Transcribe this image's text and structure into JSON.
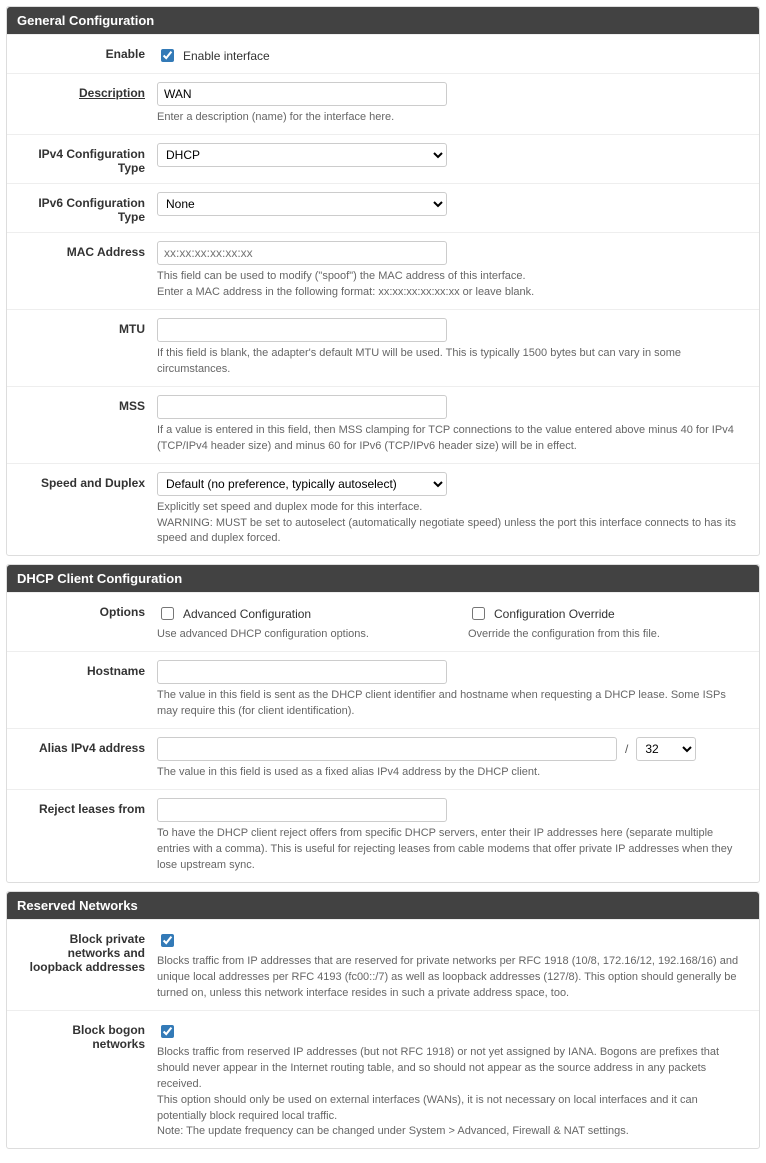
{
  "sections": {
    "general": {
      "title": "General Configuration",
      "enable": {
        "label": "Enable",
        "checkbox_label": "Enable interface",
        "checked": true
      },
      "description": {
        "label": "Description",
        "value": "WAN",
        "help": "Enter a description (name) for the interface here."
      },
      "ipv4_type": {
        "label": "IPv4 Configuration Type",
        "value": "DHCP"
      },
      "ipv6_type": {
        "label": "IPv6 Configuration Type",
        "value": "None"
      },
      "mac": {
        "label": "MAC Address",
        "placeholder": "xx:xx:xx:xx:xx:xx",
        "help": "This field can be used to modify (\"spoof\") the MAC address of this interface.\nEnter a MAC address in the following format: xx:xx:xx:xx:xx:xx or leave blank."
      },
      "mtu": {
        "label": "MTU",
        "help": "If this field is blank, the adapter's default MTU will be used. This is typically 1500 bytes but can vary in some circumstances."
      },
      "mss": {
        "label": "MSS",
        "help": "If a value is entered in this field, then MSS clamping for TCP connections to the value entered above minus 40 for IPv4 (TCP/IPv4 header size) and minus 60 for IPv6 (TCP/IPv6 header size) will be in effect."
      },
      "speed": {
        "label": "Speed and Duplex",
        "value": "Default (no preference, typically autoselect)",
        "help": "Explicitly set speed and duplex mode for this interface.\nWARNING: MUST be set to autoselect (automatically negotiate speed) unless the port this interface connects to has its speed and duplex forced."
      }
    },
    "dhcp": {
      "title": "DHCP Client Configuration",
      "options": {
        "label": "Options",
        "advanced_label": "Advanced Configuration",
        "advanced_help": "Use advanced DHCP configuration options.",
        "override_label": "Configuration Override",
        "override_help": "Override the configuration from this file."
      },
      "hostname": {
        "label": "Hostname",
        "help": "The value in this field is sent as the DHCP client identifier and hostname when requesting a DHCP lease. Some ISPs may require this (for client identification)."
      },
      "alias": {
        "label": "Alias IPv4 address",
        "slash": "/",
        "cidr": "32",
        "help": "The value in this field is used as a fixed alias IPv4 address by the DHCP client."
      },
      "reject": {
        "label": "Reject leases from",
        "help": "To have the DHCP client reject offers from specific DHCP servers, enter their IP addresses here (separate multiple entries with a comma). This is useful for rejecting leases from cable modems that offer private IP addresses when they lose upstream sync."
      }
    },
    "reserved": {
      "title": "Reserved Networks",
      "block_private": {
        "label": "Block private networks and loopback addresses",
        "checked": true,
        "help": "Blocks traffic from IP addresses that are reserved for private networks per RFC 1918 (10/8, 172.16/12, 192.168/16) and unique local addresses per RFC 4193 (fc00::/7) as well as loopback addresses (127/8). This option should generally be turned on, unless this network interface resides in such a private address space, too."
      },
      "block_bogon": {
        "label": "Block bogon networks",
        "checked": true,
        "help": "Blocks traffic from reserved IP addresses (but not RFC 1918) or not yet assigned by IANA. Bogons are prefixes that should never appear in the Internet routing table, and so should not appear as the source address in any packets received.\nThis option should only be used on external interfaces (WANs), it is not necessary on local interfaces and it can potentially block required local traffic.\nNote: The update frequency can be changed under System > Advanced, Firewall & NAT settings."
      }
    }
  }
}
